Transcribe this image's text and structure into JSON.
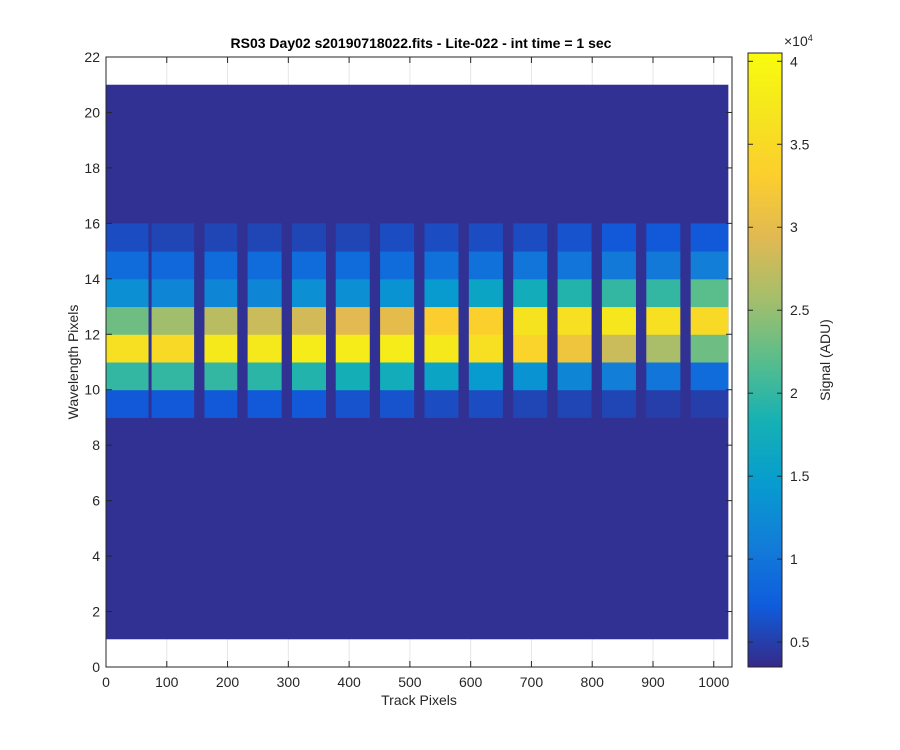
{
  "chart_data": {
    "type": "heatmap",
    "title": "RS03 Day02  s20190718022.fits - Lite-022 - int time = 1 sec",
    "xlabel": "Track Pixels",
    "ylabel": "Wavelength Pixels",
    "xlim": [
      0,
      1030
    ],
    "ylim": [
      0,
      22
    ],
    "xticks": [
      "0",
      "100",
      "200",
      "300",
      "400",
      "500",
      "600",
      "700",
      "800",
      "900",
      "1000"
    ],
    "yticks": [
      "0",
      "2",
      "4",
      "6",
      "8",
      "10",
      "12",
      "14",
      "16",
      "18",
      "20",
      "22"
    ],
    "grid": true,
    "colorbar": {
      "label": "Signal (ADU)",
      "exponent_label": "×10",
      "exponent_power": "4",
      "ticks": [
        "0.5",
        "1",
        "1.5",
        "2",
        "2.5",
        "3",
        "3.5",
        "4"
      ],
      "range": [
        0.35,
        4.05
      ],
      "colormap": "parula"
    },
    "data_extent": {
      "x": [
        0,
        1024
      ],
      "y": [
        1,
        21
      ]
    },
    "background_value": 0.4,
    "traces": [
      {
        "x_start": 0,
        "x_end": 70,
        "rows": {
          "9": 0.7,
          "10": 2.0,
          "11": 3.6,
          "12": 2.3,
          "13": 1.3,
          "14": 0.9,
          "15": 0.6
        }
      },
      {
        "x_start": 75,
        "x_end": 145,
        "rows": {
          "9": 0.7,
          "10": 2.0,
          "11": 3.5,
          "12": 2.55,
          "13": 1.2,
          "14": 0.85,
          "15": 0.55
        }
      },
      {
        "x_start": 162,
        "x_end": 216,
        "rows": {
          "9": 0.7,
          "10": 2.0,
          "11": 3.75,
          "12": 2.7,
          "13": 1.2,
          "14": 0.9,
          "15": 0.55
        }
      },
      {
        "x_start": 233,
        "x_end": 289,
        "rows": {
          "9": 0.7,
          "10": 1.95,
          "11": 3.75,
          "12": 2.8,
          "13": 1.2,
          "14": 0.9,
          "15": 0.55
        }
      },
      {
        "x_start": 306,
        "x_end": 362,
        "rows": {
          "9": 0.7,
          "10": 1.9,
          "11": 3.8,
          "12": 2.85,
          "13": 1.3,
          "14": 0.9,
          "15": 0.55
        }
      },
      {
        "x_start": 378,
        "x_end": 434,
        "rows": {
          "9": 0.65,
          "10": 1.8,
          "11": 3.8,
          "12": 2.95,
          "13": 1.3,
          "14": 0.9,
          "15": 0.55
        }
      },
      {
        "x_start": 451,
        "x_end": 507,
        "rows": {
          "9": 0.65,
          "10": 1.75,
          "11": 3.8,
          "12": 3.0,
          "13": 1.35,
          "14": 0.9,
          "15": 0.6
        }
      },
      {
        "x_start": 524,
        "x_end": 580,
        "rows": {
          "9": 0.6,
          "10": 1.6,
          "11": 3.75,
          "12": 3.3,
          "13": 1.45,
          "14": 0.95,
          "15": 0.6
        }
      },
      {
        "x_start": 597,
        "x_end": 653,
        "rows": {
          "9": 0.6,
          "10": 1.45,
          "11": 3.6,
          "12": 3.35,
          "13": 1.6,
          "14": 0.95,
          "15": 0.6
        }
      },
      {
        "x_start": 670,
        "x_end": 726,
        "rows": {
          "9": 0.55,
          "10": 1.35,
          "11": 3.4,
          "12": 3.65,
          "13": 1.75,
          "14": 1.0,
          "15": 0.6
        }
      },
      {
        "x_start": 743,
        "x_end": 799,
        "rows": {
          "9": 0.55,
          "10": 1.2,
          "11": 3.15,
          "12": 3.6,
          "13": 1.9,
          "14": 1.0,
          "15": 0.65
        }
      },
      {
        "x_start": 816,
        "x_end": 872,
        "rows": {
          "9": 0.55,
          "10": 1.1,
          "11": 2.8,
          "12": 3.7,
          "13": 2.0,
          "14": 1.05,
          "15": 0.7
        }
      },
      {
        "x_start": 889,
        "x_end": 945,
        "rows": {
          "9": 0.5,
          "10": 1.0,
          "11": 2.6,
          "12": 3.6,
          "13": 2.0,
          "14": 1.05,
          "15": 0.7
        }
      },
      {
        "x_start": 962,
        "x_end": 1024,
        "rows": {
          "9": 0.5,
          "10": 0.9,
          "11": 2.3,
          "12": 3.5,
          "13": 2.2,
          "14": 1.1,
          "15": 0.7
        }
      }
    ]
  }
}
